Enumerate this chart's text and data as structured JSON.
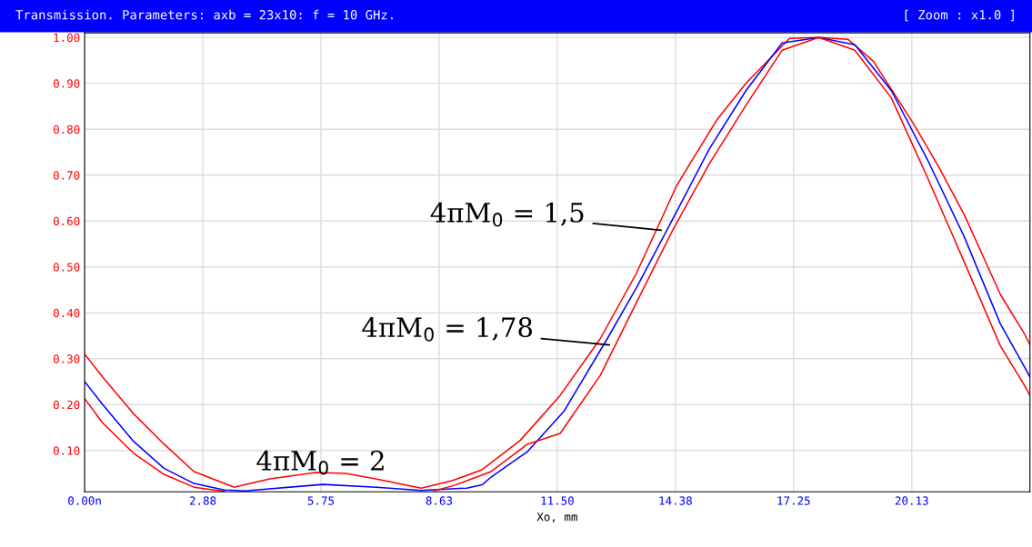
{
  "chart_data": {
    "type": "line",
    "title": "Transmission. Parameters: axb = 23x10: f = 10 GHz.",
    "xlabel": "Xo, mm",
    "xlim": [
      0,
      23
    ],
    "ylim": [
      0.01,
      1.01
    ],
    "xticks": [
      {
        "value": 0,
        "label": "0.00n"
      },
      {
        "value": 2.875,
        "label": "2.88"
      },
      {
        "value": 5.75,
        "label": "5.75"
      },
      {
        "value": 8.625,
        "label": "8.63"
      },
      {
        "value": 11.5,
        "label": "11.50"
      },
      {
        "value": 14.375,
        "label": "14.38"
      },
      {
        "value": 17.25,
        "label": "17.25"
      },
      {
        "value": 20.125,
        "label": "20.13"
      }
    ],
    "yticks": [
      {
        "value": 0.1,
        "label": "0.10"
      },
      {
        "value": 0.2,
        "label": "0.20"
      },
      {
        "value": 0.3,
        "label": "0.30"
      },
      {
        "value": 0.4,
        "label": "0.40"
      },
      {
        "value": 0.5,
        "label": "0.50"
      },
      {
        "value": 0.6,
        "label": "0.60"
      },
      {
        "value": 0.7,
        "label": "0.70"
      },
      {
        "value": 0.8,
        "label": "0.80"
      },
      {
        "value": 0.9,
        "label": "0.90"
      },
      {
        "value": 1.0,
        "label": "1.00"
      }
    ],
    "grid": true,
    "series": [
      {
        "color": "#ff0000",
        "x": [
          0,
          0.44,
          1.19,
          1.93,
          2.66,
          3.63,
          4.51,
          5.62,
          6.35,
          7.08,
          8.19,
          8.94,
          9.67,
          10.6,
          11.57,
          12.55,
          13.43,
          13.96,
          14.41,
          15.38,
          16.09,
          17.15,
          17.86,
          18.57,
          19.19,
          20.16,
          20.78,
          21.4,
          22.28,
          22.88,
          23
        ],
        "values": [
          0.31,
          0.26,
          0.18,
          0.114,
          0.054,
          0.02,
          0.038,
          0.052,
          0.05,
          0.038,
          0.018,
          0.034,
          0.058,
          0.122,
          0.22,
          0.344,
          0.487,
          0.59,
          0.678,
          0.82,
          0.9,
          0.998,
          1.0,
          0.996,
          0.948,
          0.813,
          0.718,
          0.614,
          0.44,
          0.352,
          0.33
        ]
      },
      {
        "color": "#0000ff",
        "x": [
          0,
          0.44,
          1.19,
          1.93,
          2.66,
          3.4,
          3.9,
          5.8,
          7.1,
          8.19,
          9.3,
          9.67,
          9.89,
          10.78,
          11.66,
          12.72,
          13.43,
          14.32,
          15.2,
          16.09,
          16.97,
          17.86,
          18.74,
          19.63,
          20.51,
          21.4,
          22.28,
          22.88,
          23
        ],
        "values": [
          0.25,
          0.2,
          0.12,
          0.061,
          0.028,
          0.014,
          0.012,
          0.026,
          0.02,
          0.013,
          0.018,
          0.025,
          0.042,
          0.098,
          0.185,
          0.344,
          0.455,
          0.606,
          0.757,
          0.884,
          0.988,
          1.0,
          0.984,
          0.884,
          0.733,
          0.566,
          0.376,
          0.28,
          0.26
        ]
      },
      {
        "color": "#ff0000",
        "x": [
          0,
          0.44,
          1.19,
          1.93,
          2.66,
          3.4,
          4.5,
          6.0,
          7.5,
          8.5,
          9.0,
          9.89,
          10.78,
          11.57,
          12.55,
          13.43,
          14.32,
          15.2,
          16.09,
          16.97,
          17.86,
          18.74,
          19.63,
          20.51,
          21.4,
          22.28,
          22.88,
          23
        ],
        "values": [
          0.213,
          0.16,
          0.094,
          0.048,
          0.02,
          0.011,
          null,
          null,
          null,
          0.012,
          0.024,
          0.054,
          0.114,
          0.137,
          0.264,
          0.423,
          0.582,
          0.725,
          0.852,
          0.972,
          1.0,
          0.972,
          0.868,
          0.694,
          0.511,
          0.328,
          0.24,
          0.22
        ]
      }
    ],
    "annotations": [
      {
        "text": "4πM$_{0}$ = 1,5",
        "x": 14.03,
        "y": 0.58
      },
      {
        "text": "4πM$_{0}$ = 1,78",
        "x": 12.77,
        "y": 0.33
      },
      {
        "text": "4πM$_{0}$ = 2",
        "x": 5.75,
        "y": 0.05
      },
      "[ Zoom : x1.0 ]"
    ]
  }
}
